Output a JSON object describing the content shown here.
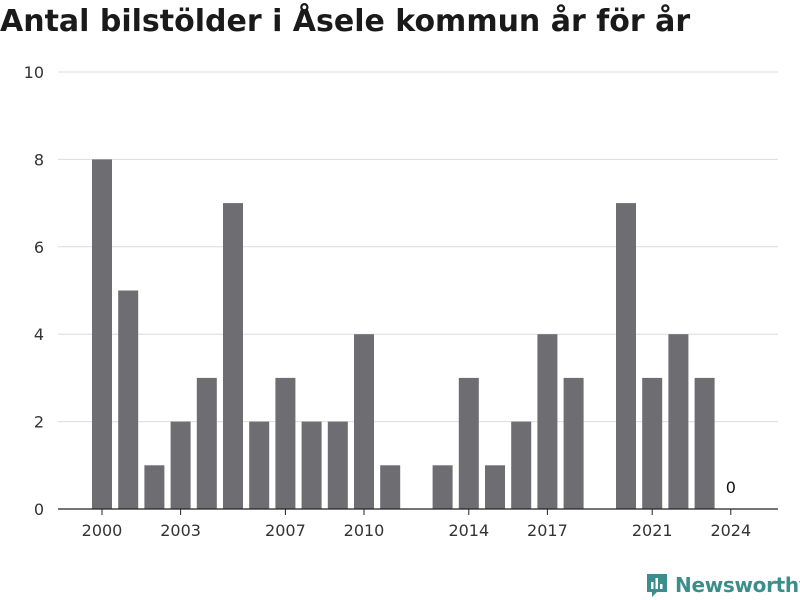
{
  "chart_data": {
    "type": "bar",
    "title": "Antal bilstölder i Åsele kommun år för år",
    "x": [
      2000,
      2001,
      2002,
      2003,
      2004,
      2005,
      2006,
      2007,
      2008,
      2009,
      2010,
      2011,
      2012,
      2013,
      2014,
      2015,
      2016,
      2017,
      2018,
      2019,
      2020,
      2021,
      2022,
      2023,
      2024
    ],
    "values": [
      8,
      5,
      1,
      2,
      3,
      7,
      2,
      3,
      2,
      2,
      4,
      1,
      0,
      1,
      3,
      1,
      2,
      4,
      3,
      0,
      7,
      3,
      4,
      3,
      0
    ],
    "x_tick_labels": [
      2000,
      2003,
      2007,
      2010,
      2014,
      2017,
      2021,
      2024
    ],
    "y_ticks": [
      0,
      2,
      4,
      6,
      8,
      10
    ],
    "ylim": [
      0,
      10
    ],
    "data_labels": [
      {
        "x": 2024,
        "value": "0"
      }
    ],
    "bar_color": "#6e6d72",
    "grid": true,
    "xlabel": "",
    "ylabel": ""
  },
  "branding": {
    "name": "Newsworthy",
    "color": "#3b8e8c"
  }
}
